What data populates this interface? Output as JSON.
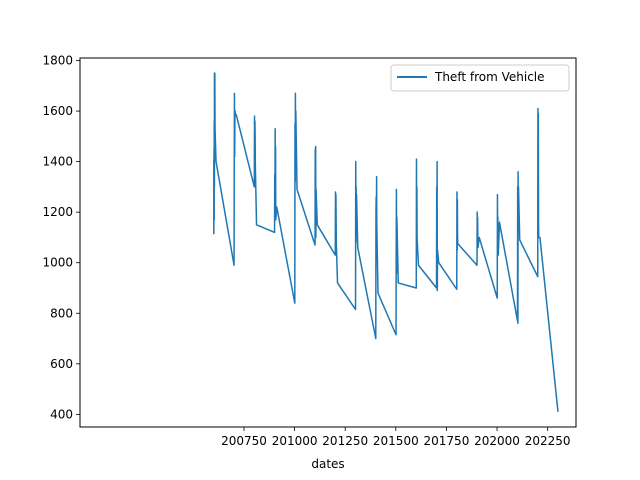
{
  "chart_data": {
    "type": "line",
    "xlabel": "dates",
    "ylabel": "",
    "xlim": [
      199940,
      202390
    ],
    "ylim": [
      350,
      1810
    ],
    "x_ticks": [
      200750,
      201000,
      201250,
      201500,
      201750,
      202000,
      202250
    ],
    "y_ticks": [
      400,
      600,
      800,
      1000,
      1200,
      1400,
      1600,
      1800
    ],
    "grid": false,
    "legend_position": "top-right",
    "series": [
      {
        "name": "Theft from Vehicle",
        "color": "#1f77b4",
        "x": [
          200601,
          200601,
          200602,
          200602,
          200603,
          200603,
          200604,
          200604,
          200605,
          200606,
          200607,
          200612,
          200701,
          200702,
          200703,
          200704,
          200705,
          200706,
          200707,
          200712,
          200801,
          200802,
          200803,
          200804,
          200805,
          200806,
          200812,
          200901,
          200902,
          200903,
          200904,
          200905,
          200906,
          200907,
          200912,
          201001,
          201002,
          201003,
          201004,
          201005,
          201006,
          201012,
          201101,
          201102,
          201103,
          201104,
          201105,
          201106,
          201112,
          201201,
          201202,
          201203,
          201204,
          201206,
          201212,
          201301,
          201302,
          201303,
          201304,
          201305,
          201306,
          201312,
          201401,
          201402,
          201403,
          201404,
          201405,
          201406,
          201412,
          201501,
          201502,
          201503,
          201504,
          201505,
          201506,
          201512,
          201601,
          201602,
          201603,
          201604,
          201605,
          201606,
          201612,
          201701,
          201702,
          201703,
          201704,
          201705,
          201706,
          201712,
          201801,
          201802,
          201803,
          201804,
          201805,
          201806,
          201812,
          201901,
          201902,
          201903,
          201904,
          201905,
          201906,
          201912,
          202001,
          202002,
          202003,
          202004,
          202005,
          202006,
          202012,
          202101,
          202102,
          202103,
          202104,
          202105,
          202106,
          202112,
          202201,
          202202,
          202203,
          202204,
          202205,
          202206,
          202212,
          202301
        ],
        "y": [
          1410,
          1115,
          1250,
          1450,
          1170,
          1560,
          1300,
          1750,
          1620,
          1750,
          1530,
          1400,
          990,
          1410,
          1670,
          1420,
          1560,
          1600,
          1590,
          1585,
          1300,
          1580,
          1400,
          1560,
          1500,
          1390,
          1150,
          1120,
          1350,
          1180,
          1530,
          1200,
          1460,
          1170,
          1220,
          840,
          1550,
          1320,
          1670,
          1380,
          1600,
          1290,
          1070,
          1450,
          1400,
          1460,
          1100,
          1290,
          1150,
          1030,
          1280,
          1180,
          1270,
          1080,
          920,
          815,
          1400,
          1080,
          1300,
          1100,
          1270,
          1060,
          700,
          1200,
          1260,
          1100,
          1340,
          1150,
          880,
          715,
          1090,
          1290,
          960,
          1180,
          1150,
          920,
          900,
          1410,
          1050,
          1300,
          1100,
          1080,
          990,
          900,
          1300,
          1100,
          1400,
          890,
          1050,
          1000,
          895,
          1280,
          1050,
          1250,
          1100,
          1075,
          1070,
          990,
          1200,
          1100,
          1180,
          1100,
          1060,
          1100,
          860,
          1270,
          1060,
          1180,
          1050,
          1030,
          1160,
          770,
          1300,
          760,
          1360,
          1200,
          1300,
          1090,
          945,
          1610,
          1120,
          1590,
          1150,
          1100,
          1100,
          410
        ]
      }
    ]
  }
}
